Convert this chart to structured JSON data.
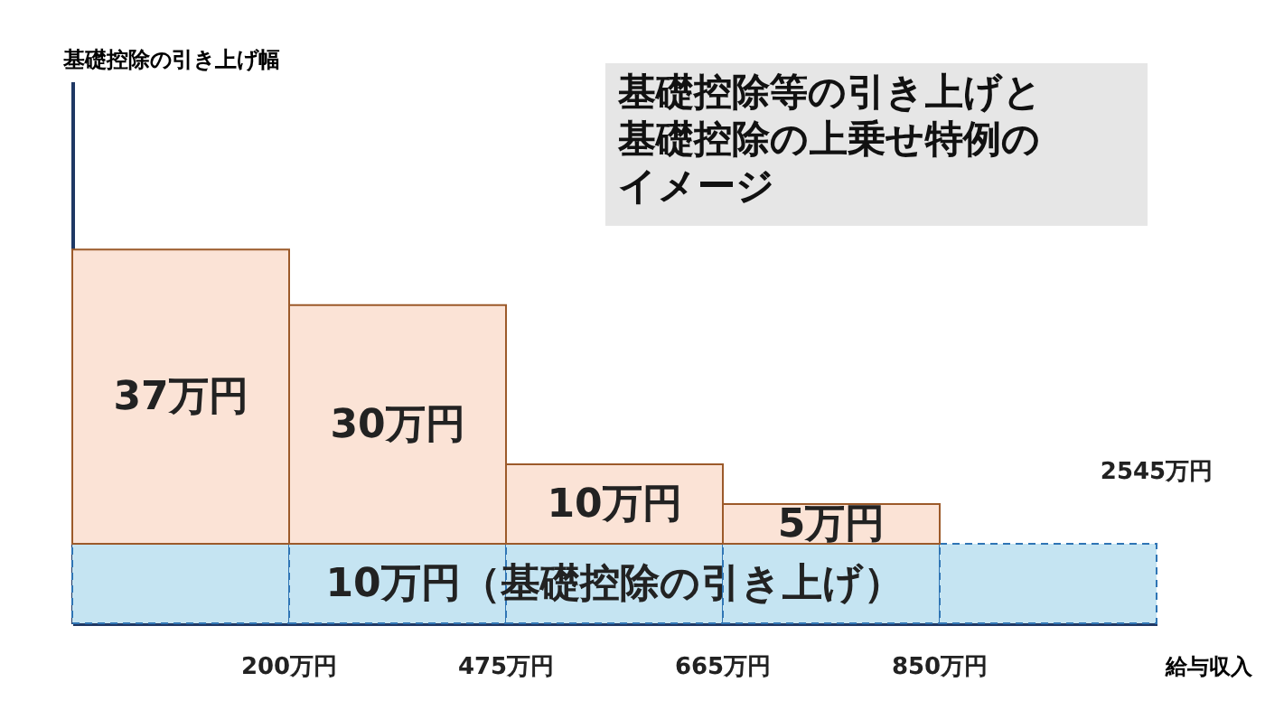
{
  "chart_data": {
    "type": "bar",
    "stacked": true,
    "title": "基礎控除等の引き上げと基礎控除の上乗せ特例のイメージ",
    "xlabel": "給与収入",
    "categories": [
      null,
      null,
      null,
      null,
      null
    ],
    "series": [
      {
        "color": "#c5e4f2",
        "values": [
          10,
          10,
          10,
          10,
          10
        ],
        "value_labels": [
          null,
          null,
          "10万円（基礎控除の引き上げ）",
          null,
          null
        ]
      },
      {
        "color": "#fbe3d6",
        "values": [
          37,
          30,
          10,
          5,
          null
        ],
        "value_labels": [
          "37万円",
          "30万円",
          "10万円",
          "5万円",
          null
        ]
      }
    ],
    "annotations": [
      "基礎控除の引き上げ幅",
      "200万円",
      "475万円",
      "665万円",
      "850万円",
      "2545万円"
    ],
    "tick_labels": false,
    "grid": false
  }
}
